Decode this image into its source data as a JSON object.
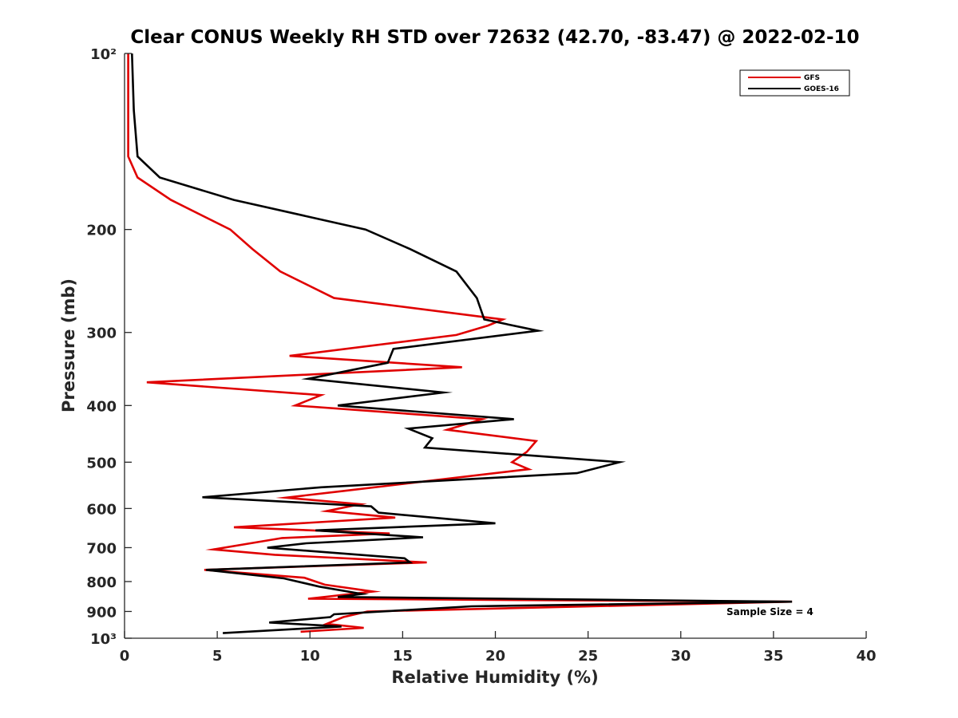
{
  "chart_data": {
    "type": "line",
    "title": "Clear CONUS Weekly RH STD over 72632 (42.70, -83.47) @ 2022-02-10",
    "xlabel": "Relative Humidity (%)",
    "ylabel": "Pressure (mb)",
    "xlim": [
      0,
      40
    ],
    "ylim": [
      100,
      1000
    ],
    "y_scale": "log",
    "y_reversed": true,
    "x_ticks": [
      0,
      5,
      10,
      15,
      20,
      25,
      30,
      35,
      40
    ],
    "x_tick_labels": [
      "0",
      "5",
      "10",
      "15",
      "20",
      "25",
      "30",
      "35",
      "40"
    ],
    "y_ticks": [
      100,
      200,
      300,
      400,
      500,
      600,
      700,
      800,
      900,
      1000
    ],
    "y_tick_labels": [
      "10²",
      "200",
      "300",
      "400",
      "500",
      "600",
      "700",
      "800",
      "900",
      "10³"
    ],
    "grid": false,
    "legend_position": "top-right",
    "annotation": "Sample Size = 4",
    "series": [
      {
        "name": "GFS",
        "color": "#e00000",
        "points": [
          [
            0.2,
            100
          ],
          [
            0.2,
            125
          ],
          [
            0.2,
            150
          ],
          [
            0.7,
            163
          ],
          [
            2.5,
            178
          ],
          [
            5.7,
            200
          ],
          [
            6.9,
            216
          ],
          [
            8.4,
            236
          ],
          [
            11.3,
            262
          ],
          [
            20.4,
            285
          ],
          [
            19.6,
            292
          ],
          [
            17.9,
            303
          ],
          [
            8.9,
            329
          ],
          [
            18.2,
            344
          ],
          [
            1.2,
            365
          ],
          [
            10.6,
            384
          ],
          [
            9.2,
            400
          ],
          [
            19.3,
            422
          ],
          [
            17.4,
            440
          ],
          [
            22.2,
            460
          ],
          [
            21.7,
            480
          ],
          [
            20.9,
            500
          ],
          [
            21.8,
            514
          ],
          [
            11.8,
            560
          ],
          [
            8.7,
            575
          ],
          [
            12.7,
            590
          ],
          [
            10.9,
            606
          ],
          [
            14.6,
            622
          ],
          [
            5.9,
            646
          ],
          [
            14.3,
            662
          ],
          [
            8.5,
            674
          ],
          [
            4.8,
            705
          ],
          [
            8.1,
            720
          ],
          [
            16.3,
            742
          ],
          [
            4.3,
            764
          ],
          [
            9.7,
            788
          ],
          [
            10.8,
            810
          ],
          [
            13.4,
            832
          ],
          [
            9.9,
            856
          ],
          [
            36.0,
            866
          ],
          [
            13.1,
            900
          ],
          [
            11.8,
            920
          ],
          [
            10.9,
            945
          ],
          [
            12.9,
            960
          ],
          [
            9.5,
            975
          ]
        ]
      },
      {
        "name": "GOES-16",
        "color": "#000000",
        "points": [
          [
            0.4,
            100
          ],
          [
            0.5,
            125
          ],
          [
            0.7,
            150
          ],
          [
            1.9,
            163
          ],
          [
            5.9,
            178
          ],
          [
            13.0,
            200
          ],
          [
            15.4,
            216
          ],
          [
            17.9,
            236
          ],
          [
            19.0,
            262
          ],
          [
            19.4,
            285
          ],
          [
            22.3,
            298
          ],
          [
            14.5,
            320
          ],
          [
            14.2,
            338
          ],
          [
            9.9,
            360
          ],
          [
            17.2,
            380
          ],
          [
            11.5,
            400
          ],
          [
            21.0,
            422
          ],
          [
            15.3,
            438
          ],
          [
            16.6,
            455
          ],
          [
            16.2,
            472
          ],
          [
            26.7,
            500
          ],
          [
            24.4,
            522
          ],
          [
            10.6,
            552
          ],
          [
            4.2,
            574
          ],
          [
            13.3,
            595
          ],
          [
            13.7,
            610
          ],
          [
            20.0,
            636
          ],
          [
            10.3,
            654
          ],
          [
            16.1,
            672
          ],
          [
            9.8,
            688
          ],
          [
            7.7,
            700
          ],
          [
            15.1,
            730
          ],
          [
            15.4,
            742
          ],
          [
            4.4,
            764
          ],
          [
            8.6,
            790
          ],
          [
            10.5,
            816
          ],
          [
            12.8,
            840
          ],
          [
            11.5,
            850
          ],
          [
            36.0,
            866
          ],
          [
            18.7,
            882
          ],
          [
            11.3,
            910
          ],
          [
            11.1,
            920
          ],
          [
            7.8,
            940
          ],
          [
            11.7,
            955
          ],
          [
            5.3,
            980
          ]
        ]
      }
    ]
  }
}
